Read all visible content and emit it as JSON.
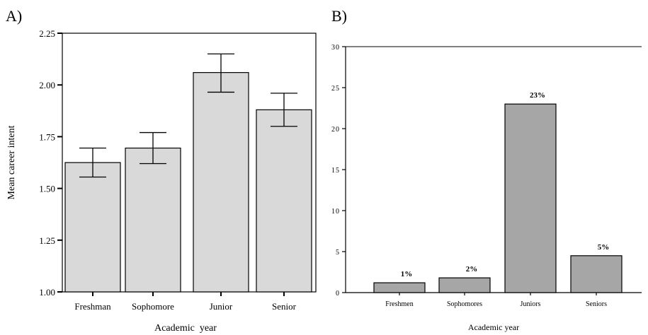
{
  "chart_data": [
    {
      "type": "bar",
      "panel_label": "A)",
      "categories": [
        "Freshman",
        "Sophomore",
        "Junior",
        "Senior"
      ],
      "values": [
        1.625,
        1.695,
        2.06,
        1.88
      ],
      "error_low": [
        1.555,
        1.62,
        1.965,
        1.8
      ],
      "error_high": [
        1.695,
        1.77,
        2.15,
        1.96
      ],
      "xlabel": "Academic  year",
      "ylabel": "Mean career intent",
      "ylim": [
        1.0,
        2.25
      ],
      "yticks": [
        "1.00",
        "1.25",
        "1.50",
        "1.75",
        "2.00",
        "2.25"
      ],
      "ytick_values": [
        1.0,
        1.25,
        1.5,
        1.75,
        2.0,
        2.25
      ],
      "bar_color": "#d9d9d9"
    },
    {
      "type": "bar",
      "panel_label": "B)",
      "categories": [
        "Freshmen",
        "Sophomores",
        "Juniors",
        "Seniors"
      ],
      "values": [
        1.2,
        1.8,
        23,
        4.5
      ],
      "data_labels": [
        "1%",
        "2%",
        "23%",
        "5%"
      ],
      "xlabel": "Academic year",
      "ylabel": "",
      "ylim": [
        0,
        30
      ],
      "yticks": [
        "0",
        "5",
        "10",
        "15",
        "20",
        "25",
        "30"
      ],
      "ytick_values": [
        0,
        5,
        10,
        15,
        20,
        25,
        30
      ],
      "bar_color": "#a6a6a6"
    }
  ]
}
